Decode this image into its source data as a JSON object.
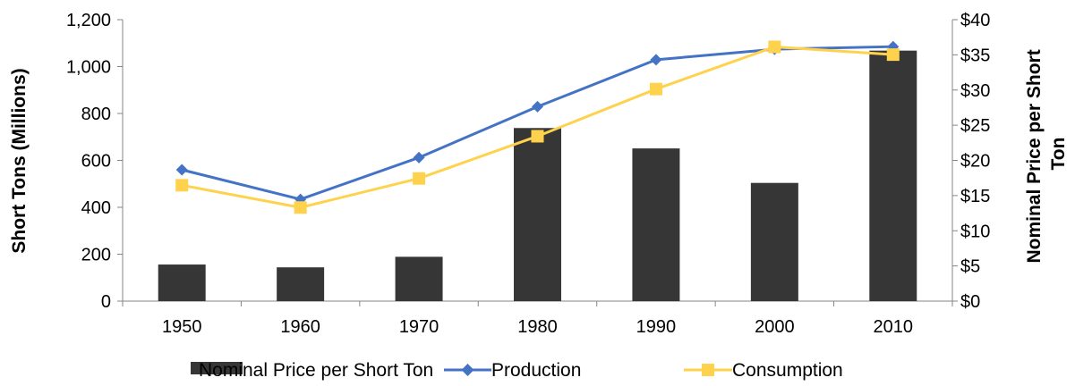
{
  "chart_data": {
    "type": "bar",
    "categories": [
      "1950",
      "1960",
      "1970",
      "1980",
      "1990",
      "2000",
      "2010"
    ],
    "series": [
      {
        "name": "Nominal Price per Short Ton",
        "type": "bar",
        "axis": "right",
        "color": "#363636",
        "values": [
          5.2,
          4.8,
          6.3,
          24.6,
          21.7,
          16.8,
          35.6
        ]
      },
      {
        "name": "Production",
        "type": "line",
        "axis": "left",
        "color": "#4472C4",
        "marker": "diamond",
        "values": [
          560,
          434,
          612,
          829,
          1029,
          1074,
          1085
        ]
      },
      {
        "name": "Consumption",
        "type": "line",
        "axis": "left",
        "color": "#FFD24D",
        "marker": "square",
        "values": [
          494,
          399,
          523,
          703,
          904,
          1084,
          1051
        ]
      }
    ],
    "left_axis": {
      "title": "Short Tons (Millions)",
      "ylim": [
        0,
        1200
      ],
      "tick_labels": [
        "0",
        "200",
        "400",
        "600",
        "800",
        "1,000",
        "1,200"
      ]
    },
    "right_axis": {
      "title_lines": [
        "Nominal Price per Short",
        "Ton"
      ],
      "ylim": [
        0,
        40
      ],
      "tick_labels": [
        "$0",
        "$5",
        "$10",
        "$15",
        "$20",
        "$25",
        "$30",
        "$35",
        "$40"
      ]
    },
    "grid": false,
    "legend_position": "bottom",
    "legend": [
      "Nominal Price per Short Ton",
      "Production",
      "Consumption"
    ]
  }
}
